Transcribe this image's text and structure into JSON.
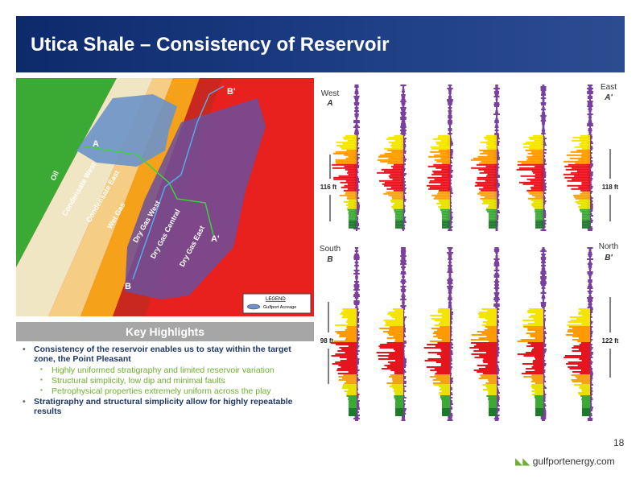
{
  "header": {
    "title": "Utica Shale – Consistency of Reservoir"
  },
  "map": {
    "zones": [
      "Oil",
      "Condensate West",
      "Condensate East",
      "Wet Gas",
      "Dry Gas West",
      "Dry Gas Central",
      "Dry Gas East"
    ],
    "points": {
      "a": "A",
      "a_prime": "A'",
      "b": "B",
      "b_prime": "B'"
    },
    "legend": {
      "title": "LEGEND",
      "item": "Gulfport Acreage"
    }
  },
  "highlights": {
    "title": "Key Highlights",
    "items": [
      {
        "text": "Consistency of the reservoir enables us to stay within the target zone, the Point Pleasant",
        "sub": [
          "Highly uniformed stratigraphy and limited reservoir variation",
          "Structural simplicity, low dip and minimal faults",
          "Petrophysical properties extremely uniform across the play"
        ]
      },
      {
        "text": "Stratigraphy and structural simplicity allow for highly repeatable results",
        "sub": []
      }
    ]
  },
  "sections": {
    "top": {
      "left_dir": "West",
      "left_point": "A",
      "right_dir": "East",
      "right_point": "A'",
      "left_thickness": "116 ft",
      "right_thickness": "118 ft"
    },
    "bottom": {
      "left_dir": "South",
      "left_point": "B",
      "right_dir": "North",
      "right_point": "B'",
      "left_thickness": "98 ft",
      "right_thickness": "122 ft"
    }
  },
  "footer": {
    "page_number": "18",
    "website": "gulfportenergy.com"
  }
}
